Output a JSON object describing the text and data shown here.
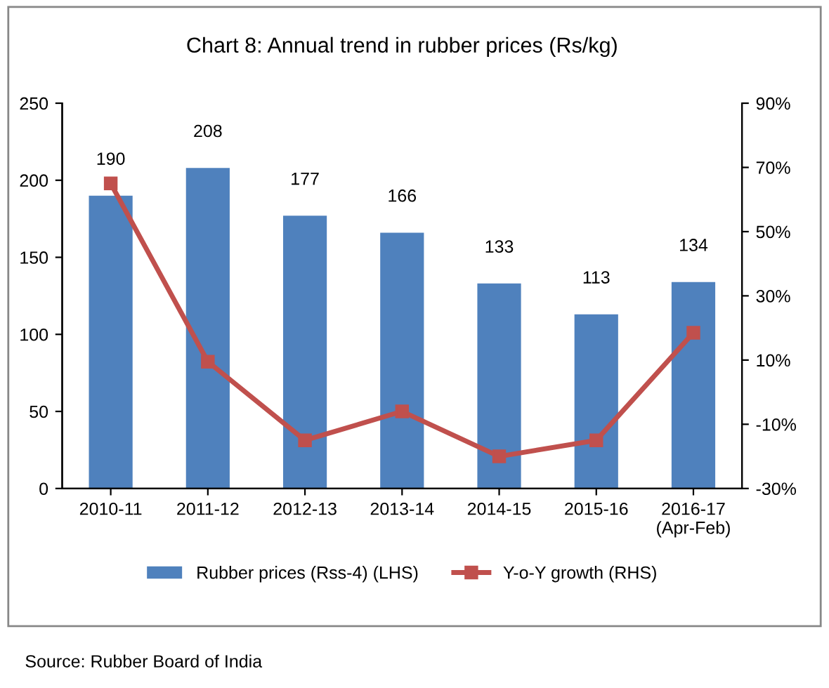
{
  "chart_data": {
    "type": "bar",
    "title": "Chart 8: Annual trend in rubber prices (Rs/kg)",
    "categories": [
      "2010-11",
      "2011-12",
      "2012-13",
      "2013-14",
      "2014-15",
      "2015-16",
      "2016-17\n(Apr-Feb)"
    ],
    "series": [
      {
        "name": "Rubber prices (Rss-4) (LHS)",
        "color": "#4f81bd",
        "values": [
          190,
          208,
          177,
          166,
          133,
          113,
          134
        ],
        "value_labels": [
          "190",
          "208",
          "177",
          "166",
          "133",
          "113",
          "134"
        ]
      },
      {
        "name": "Y-o-Y growth (RHS)",
        "type": "line",
        "axis": "y2",
        "color": "#c0504d",
        "marker": "square",
        "values": [
          65,
          9.5,
          -15,
          -6,
          -20,
          -15,
          18.5
        ]
      }
    ],
    "ylim": [
      0,
      250
    ],
    "yticks": [
      0,
      50,
      100,
      150,
      200,
      250
    ],
    "y2lim": [
      -30,
      90
    ],
    "y2ticks": [
      {
        "value": -30,
        "label": "-30%"
      },
      {
        "value": -10,
        "label": "-10%"
      },
      {
        "value": 10,
        "label": "10%"
      },
      {
        "value": 30,
        "label": "30%"
      },
      {
        "value": 50,
        "label": "50%"
      },
      {
        "value": 70,
        "label": "70%"
      },
      {
        "value": 90,
        "label": "90%"
      }
    ],
    "grid": false,
    "legend": "bottom",
    "annotations": [
      "Source: Rubber Board of India"
    ]
  }
}
